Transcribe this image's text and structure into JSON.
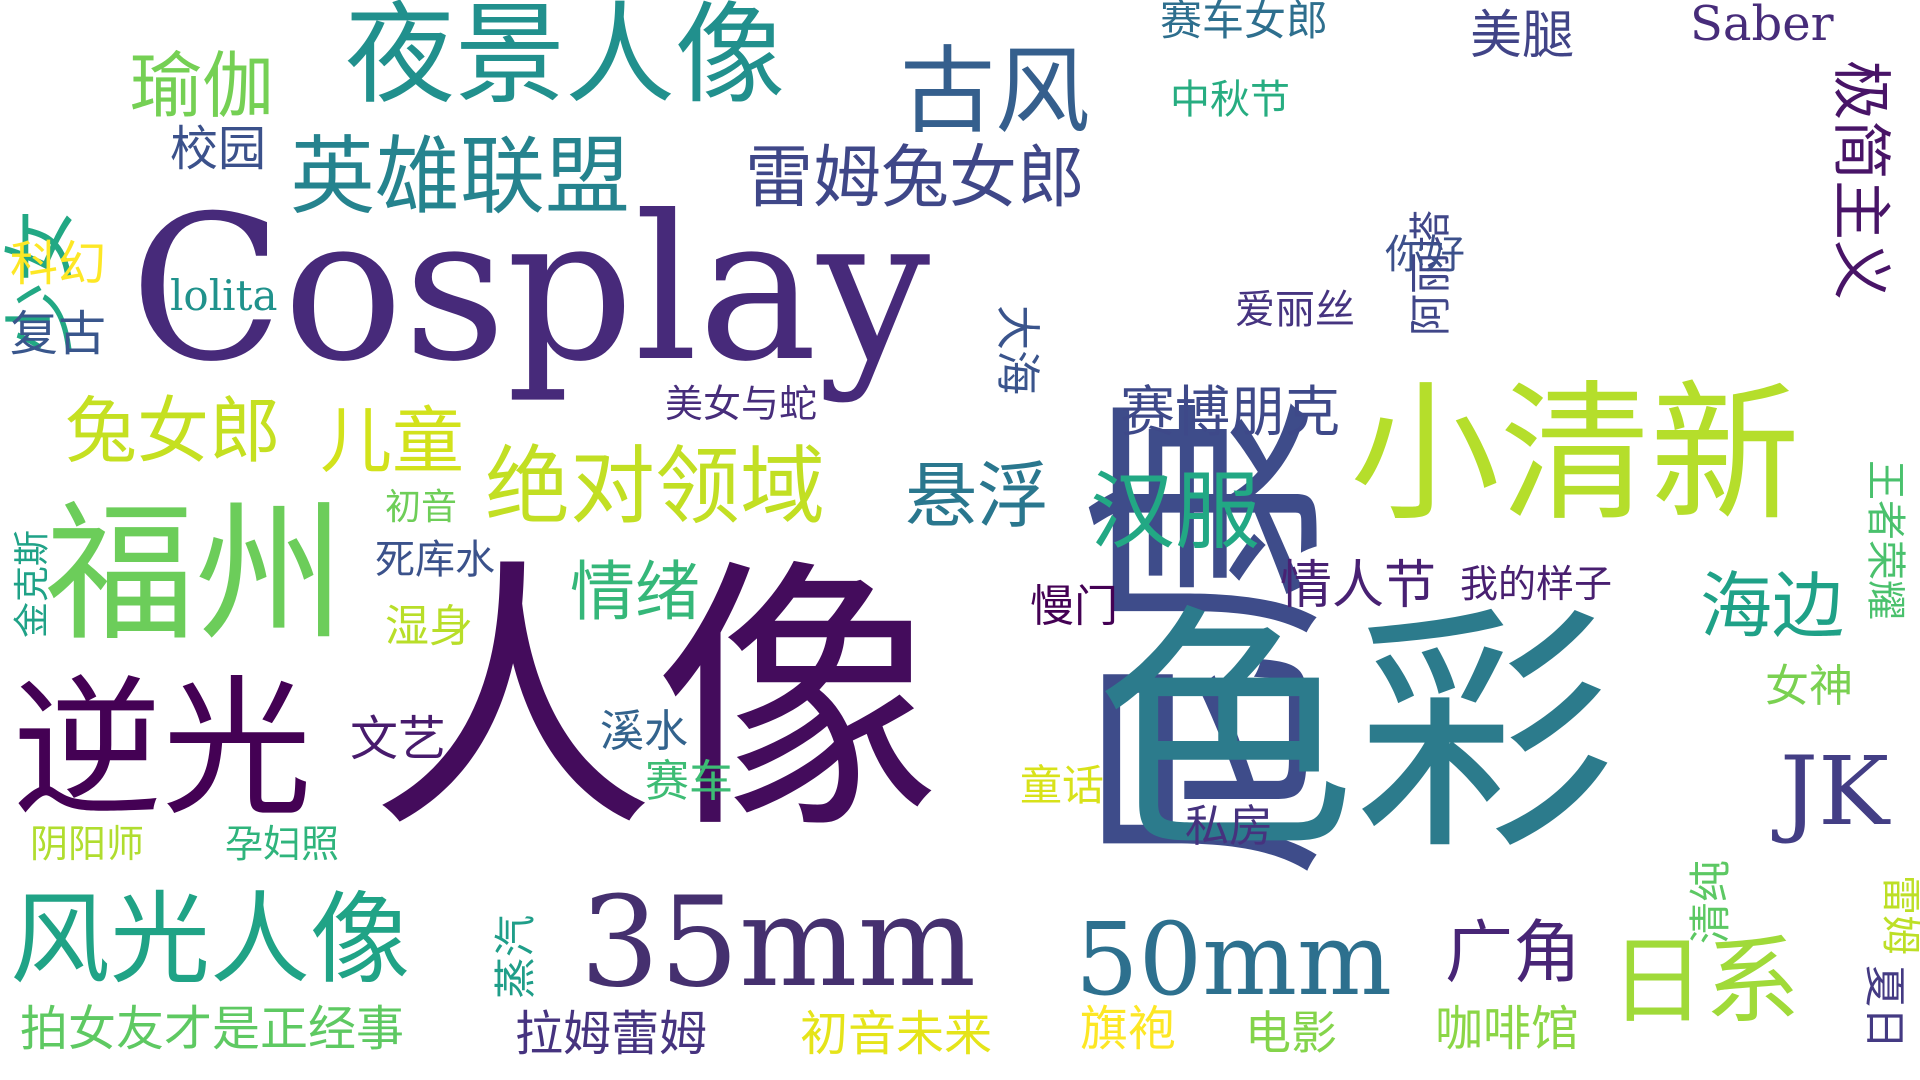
{
  "words": [
    {
      "text": "尼康",
      "color": "#3e4c8a"
    },
    {
      "text": "人像",
      "color": "#440c5c"
    },
    {
      "text": "色彩",
      "color": "#2c7b8c"
    },
    {
      "text": "Cosplay",
      "color": "#472a7a"
    },
    {
      "text": "小清新",
      "color": "#b5de2b"
    },
    {
      "text": "福州",
      "color": "#6ccd5a"
    },
    {
      "text": "逆光",
      "color": "#440154"
    },
    {
      "text": "夜景人像",
      "color": "#21908d"
    },
    {
      "text": "35mm",
      "color": "#45306f"
    },
    {
      "text": "50mm",
      "color": "#2d708e"
    },
    {
      "text": "风光人像",
      "color": "#20a386"
    },
    {
      "text": "古风",
      "color": "#355f8d"
    },
    {
      "text": "英雄联盟",
      "color": "#25838e"
    },
    {
      "text": "绝对领域",
      "color": "#c2df23"
    },
    {
      "text": "日系",
      "color": "#a0da39"
    },
    {
      "text": "汉服",
      "color": "#22a884"
    },
    {
      "text": "雷姆兔女郎",
      "color": "#3f4788"
    },
    {
      "text": "少女",
      "color": "#22a884"
    },
    {
      "text": "瑜伽",
      "color": "#75d054"
    },
    {
      "text": "兔女郎",
      "color": "#c5e021"
    },
    {
      "text": "极简主义",
      "color": "#481467"
    },
    {
      "text": "JK",
      "color": "#433e85"
    },
    {
      "text": "海边",
      "color": "#1fa187"
    },
    {
      "text": "悬浮",
      "color": "#2a778e"
    },
    {
      "text": "情绪",
      "color": "#35b779"
    },
    {
      "text": "儿童",
      "color": "#d2e21b"
    },
    {
      "text": "赛博朋克",
      "color": "#3e4989"
    },
    {
      "text": "广角",
      "color": "#482576"
    },
    {
      "text": "美腿",
      "color": "#414487"
    },
    {
      "text": "Saber",
      "color": "#472c7a"
    },
    {
      "text": "赛车女郎",
      "color": "#2e6f8e"
    },
    {
      "text": "中秋节",
      "color": "#27ad81"
    },
    {
      "text": "阿丽塔",
      "color": "#404688"
    },
    {
      "text": "校园",
      "color": "#3b518b"
    },
    {
      "text": "科幻",
      "color": "#fde725"
    },
    {
      "text": "lolita",
      "color": "#20928c"
    },
    {
      "text": "复古",
      "color": "#39568c"
    },
    {
      "text": "你好",
      "color": "#3c508b"
    },
    {
      "text": "爱丽丝",
      "color": "#463480"
    },
    {
      "text": "大海",
      "color": "#3a548c"
    },
    {
      "text": "美女与蛇",
      "color": "#472d7b"
    },
    {
      "text": "金克斯",
      "color": "#1fa287"
    },
    {
      "text": "初音",
      "color": "#6ece58"
    },
    {
      "text": "死库水",
      "color": "#3b528b"
    },
    {
      "text": "湿身",
      "color": "#b8de29"
    },
    {
      "text": "慢门",
      "color": "#440154"
    },
    {
      "text": "情人节",
      "color": "#482173"
    },
    {
      "text": "我的样子",
      "color": "#481f70"
    },
    {
      "text": "王者荣耀",
      "color": "#4ac16d"
    },
    {
      "text": "女神",
      "color": "#7ad151"
    },
    {
      "text": "文艺",
      "color": "#481b6d"
    },
    {
      "text": "溪水",
      "color": "#33638d"
    },
    {
      "text": "赛车",
      "color": "#3dbc74"
    },
    {
      "text": "童话",
      "color": "#d8e219"
    },
    {
      "text": "私房",
      "color": "#46327e"
    },
    {
      "text": "清纯",
      "color": "#5cc863"
    },
    {
      "text": "阴阳师",
      "color": "#b0dd2f"
    },
    {
      "text": "孕妇照",
      "color": "#2fb47c"
    },
    {
      "text": "蒸汽",
      "color": "#1f9e89"
    },
    {
      "text": "雷姆",
      "color": "#bddf26"
    },
    {
      "text": "夏日",
      "color": "#443a83"
    },
    {
      "text": "拍女友才是正经事",
      "color": "#5ec962"
    },
    {
      "text": "拉姆蕾姆",
      "color": "#46337f"
    },
    {
      "text": "初音未来",
      "color": "#e5e419"
    },
    {
      "text": "旗袍",
      "color": "#fde725"
    },
    {
      "text": "电影",
      "color": "#84d44b"
    },
    {
      "text": "咖啡馆",
      "color": "#8bd646"
    }
  ]
}
